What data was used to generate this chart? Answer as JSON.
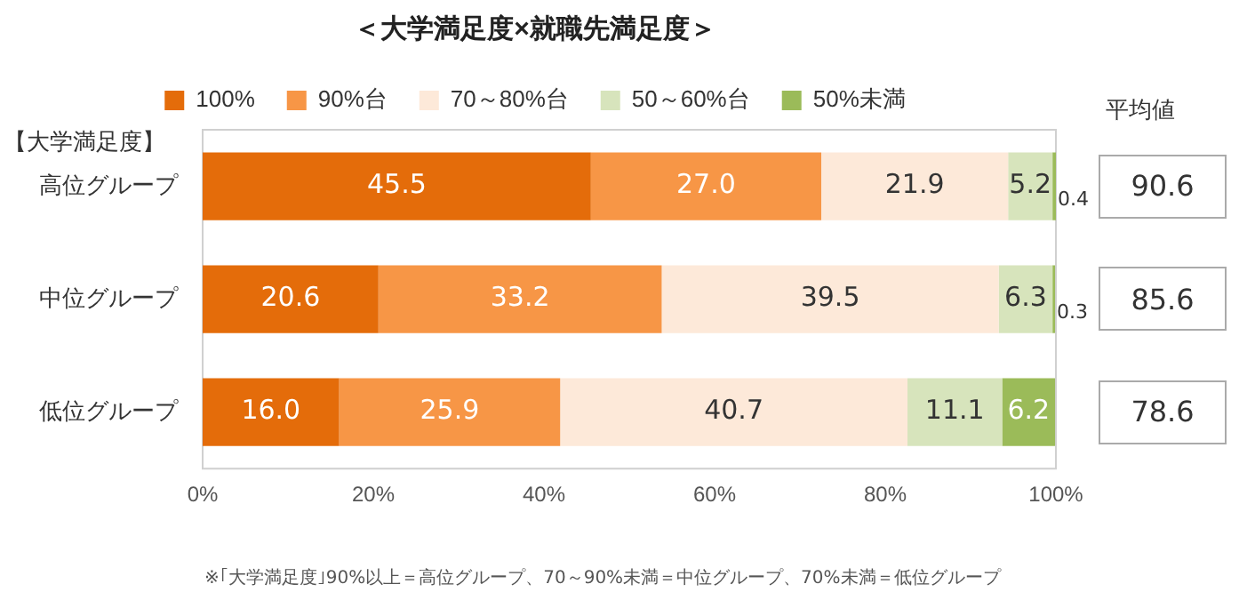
{
  "chart_data": {
    "type": "bar",
    "orientation": "horizontal",
    "stacked": true,
    "title": "＜大学満足度×就職先満足度＞",
    "ylabel": "【大学満足度】",
    "categories": [
      "高位グループ",
      "中位グループ",
      "低位グループ"
    ],
    "series": [
      {
        "name": "100%",
        "color": "#e46c0a",
        "values": [
          45.5,
          20.6,
          16.0
        ],
        "value_labels": [
          "45.5",
          "20.6",
          "16.0"
        ]
      },
      {
        "name": "90%台",
        "color": "#f79646",
        "values": [
          27.0,
          33.2,
          25.9
        ],
        "value_labels": [
          "27.0",
          "33.2",
          "25.9"
        ]
      },
      {
        "name": "70～80%台",
        "color": "#fde9d9",
        "values": [
          21.9,
          39.5,
          40.7
        ],
        "value_labels": [
          "21.9",
          "39.5",
          "40.7"
        ]
      },
      {
        "name": "50～60%台",
        "color": "#d7e4bc",
        "values": [
          5.2,
          6.3,
          11.1
        ],
        "value_labels": [
          "5.2",
          "6.3",
          "11.1"
        ]
      },
      {
        "name": "50%未満",
        "color": "#9bbb59",
        "values": [
          0.4,
          0.3,
          6.2
        ],
        "value_labels": [
          "0.4",
          "0.3",
          "6.2"
        ]
      }
    ],
    "xlim": [
      0,
      100
    ],
    "xticks": [
      {
        "value": 0,
        "label": "0%"
      },
      {
        "value": 20,
        "label": "20%"
      },
      {
        "value": 40,
        "label": "40%"
      },
      {
        "value": 60,
        "label": "60%"
      },
      {
        "value": 80,
        "label": "80%"
      },
      {
        "value": 100,
        "label": "100%"
      }
    ],
    "grid": false,
    "legend": "top",
    "annotations": [
      "平均値",
      "90.6",
      "85.6",
      "78.6",
      "※｢大学満足度｣90%以上＝高位グループ、70～90%未満＝中位グループ、70%未満＝低位グループ"
    ]
  }
}
